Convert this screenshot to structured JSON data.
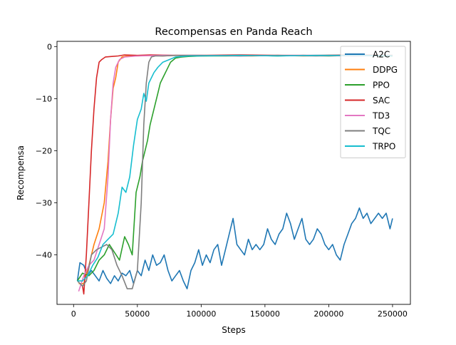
{
  "chart_data": {
    "type": "line",
    "title": "Recompensas en Panda Reach",
    "xlabel": "Steps",
    "ylabel": "Recompensa",
    "xlim": [
      -13000,
      264000
    ],
    "ylim": [
      -49.5,
      1.0
    ],
    "xticks": [
      0,
      50000,
      100000,
      150000,
      200000,
      250000
    ],
    "xtick_labels": [
      "0",
      "50000",
      "100000",
      "150000",
      "200000",
      "250000"
    ],
    "yticks": [
      0,
      -10,
      -20,
      -30,
      -40
    ],
    "ytick_labels": [
      "0",
      "−10",
      "−20",
      "−30",
      "−40"
    ],
    "grid": false,
    "legend_position": "top-right",
    "series": [
      {
        "name": "A2C",
        "color": "#1f77b4",
        "x": [
          3000,
          5000,
          8000,
          11000,
          14000,
          17000,
          20000,
          23000,
          26000,
          29000,
          32000,
          35000,
          38000,
          41000,
          44000,
          47000,
          50000,
          53000,
          56000,
          59000,
          62000,
          65000,
          68000,
          71000,
          74000,
          77000,
          80000,
          83000,
          86000,
          89000,
          92000,
          95000,
          98000,
          101000,
          104000,
          107000,
          110000,
          113000,
          116000,
          119000,
          122000,
          125000,
          128000,
          131000,
          134000,
          137000,
          140000,
          143000,
          146000,
          149000,
          152000,
          155000,
          158000,
          161000,
          164000,
          167000,
          170000,
          173000,
          176000,
          179000,
          182000,
          185000,
          188000,
          191000,
          194000,
          197000,
          200000,
          203000,
          206000,
          209000,
          212000,
          215000,
          218000,
          221000,
          224000,
          227000,
          230000,
          233000,
          236000,
          239000,
          242000,
          245000,
          248000,
          250000
        ],
        "y": [
          -45,
          -41.5,
          -42,
          -44,
          -43,
          -44,
          -45,
          -43,
          -44.5,
          -45.5,
          -44,
          -45,
          -43.5,
          -44,
          -43,
          -45.5,
          -43,
          -44,
          -41,
          -43,
          -40,
          -42,
          -41.5,
          -40,
          -43,
          -45,
          -44,
          -43,
          -45,
          -46.5,
          -43,
          -41.5,
          -39,
          -42,
          -40,
          -41.5,
          -39,
          -38,
          -42,
          -39,
          -36,
          -33,
          -38,
          -39,
          -40,
          -37,
          -39,
          -38,
          -39,
          -38,
          -35,
          -37,
          -38,
          -36,
          -35,
          -32,
          -34,
          -37,
          -35,
          -33,
          -37,
          -38,
          -37,
          -35,
          -36,
          -38,
          -39,
          -38,
          -40,
          -41,
          -38,
          -36,
          -34,
          -33,
          -31,
          -33,
          -32,
          -34,
          -33,
          -32,
          -33,
          -32,
          -35,
          -33
        ]
      },
      {
        "name": "DDPG",
        "color": "#ff7f0e",
        "x": [
          4000,
          8000,
          12000,
          16000,
          20000,
          24000,
          27000,
          29000,
          31000,
          33000,
          35000,
          38000,
          42000,
          50000,
          60000,
          70000,
          80000,
          100000,
          120000,
          140000,
          160000,
          180000,
          200000,
          220000,
          240000,
          250000
        ],
        "y": [
          -45.5,
          -45.5,
          -42,
          -38,
          -35,
          -30,
          -22,
          -14,
          -8,
          -6,
          -3,
          -2,
          -1.8,
          -1.8,
          -1.7,
          -1.8,
          -1.7,
          -1.8,
          -1.7,
          -1.8,
          -1.7,
          -1.8,
          -1.7,
          -1.8,
          -1.7,
          -1.8
        ]
      },
      {
        "name": "PPO",
        "color": "#2ca02c",
        "x": [
          3000,
          7000,
          12000,
          16000,
          20000,
          24000,
          28000,
          32000,
          36000,
          40000,
          43000,
          46000,
          49000,
          52000,
          54000,
          56000,
          58000,
          60000,
          62000,
          64000,
          66000,
          68000,
          70000,
          73000,
          76000,
          80000,
          85000,
          90000,
          100000,
          120000,
          140000,
          160000,
          180000,
          200000,
          220000,
          240000,
          250000
        ],
        "y": [
          -45,
          -43.5,
          -44,
          -43,
          -41,
          -40,
          -38,
          -39.5,
          -41,
          -36.5,
          -38,
          -40,
          -28,
          -25,
          -22,
          -20,
          -18,
          -15,
          -13,
          -11,
          -9,
          -7,
          -6,
          -4.5,
          -3,
          -2.2,
          -2,
          -1.9,
          -1.8,
          -1.8,
          -1.7,
          -1.8,
          -1.7,
          -1.8,
          -1.7,
          -1.8,
          -1.8
        ]
      },
      {
        "name": "SAC",
        "color": "#d62728",
        "x": [
          5000,
          7000,
          8000,
          10000,
          12000,
          14000,
          16000,
          18000,
          20000,
          22000,
          25000,
          30000,
          35000,
          40000,
          50000,
          60000,
          80000,
          100000,
          130000,
          160000,
          190000,
          220000,
          250000
        ],
        "y": [
          -45.5,
          -46,
          -47.5,
          -40,
          -30,
          -20,
          -12,
          -6,
          -3,
          -2.5,
          -2,
          -1.9,
          -1.8,
          -1.6,
          -1.7,
          -1.6,
          -1.7,
          -1.7,
          -1.6,
          -1.7,
          -1.7,
          -1.6,
          -1.7
        ]
      },
      {
        "name": "TD3",
        "color": "#e377c2",
        "x": [
          4000,
          8000,
          12000,
          16000,
          20000,
          24000,
          27000,
          29000,
          31000,
          33000,
          36000,
          40000,
          50000,
          70000,
          100000,
          130000,
          160000,
          190000,
          220000,
          250000
        ],
        "y": [
          -47,
          -44,
          -42,
          -41,
          -38,
          -35,
          -25,
          -14,
          -7,
          -4,
          -2.5,
          -2,
          -1.8,
          -1.7,
          -1.7,
          -1.8,
          -1.7,
          -1.7,
          -1.8,
          -1.7
        ]
      },
      {
        "name": "TQC",
        "color": "#7f7f7f",
        "x": [
          3000,
          7000,
          10000,
          14000,
          18000,
          22000,
          26000,
          30000,
          34000,
          38000,
          42000,
          46000,
          50000,
          53000,
          55000,
          57000,
          59000,
          61000,
          64000,
          70000,
          80000,
          100000,
          130000,
          160000,
          190000,
          220000,
          250000
        ],
        "y": [
          -45,
          -46,
          -45,
          -40,
          -39,
          -38.5,
          -38,
          -39,
          -42,
          -44,
          -46.5,
          -46.5,
          -43,
          -30,
          -15,
          -7,
          -3,
          -2,
          -1.8,
          -1.8,
          -1.7,
          -1.7,
          -1.8,
          -1.7,
          -1.8,
          -1.7,
          -1.7
        ]
      },
      {
        "name": "TRPO",
        "color": "#17becf",
        "x": [
          3000,
          7000,
          11000,
          15000,
          19000,
          23000,
          27000,
          31000,
          35000,
          38000,
          41000,
          44000,
          47000,
          50000,
          53000,
          55000,
          57000,
          59000,
          61000,
          63000,
          66000,
          70000,
          75000,
          80000,
          90000,
          100000,
          130000,
          160000,
          190000,
          220000,
          250000
        ],
        "y": [
          -45,
          -45,
          -44,
          -42,
          -40.5,
          -38,
          -37,
          -36,
          -32,
          -27,
          -28,
          -25,
          -19,
          -14,
          -12,
          -9,
          -10.5,
          -7,
          -6,
          -5,
          -4,
          -3,
          -2.5,
          -2,
          -1.8,
          -1.8,
          -1.7,
          -1.8,
          -1.7,
          -1.7,
          -1.8
        ]
      }
    ]
  }
}
